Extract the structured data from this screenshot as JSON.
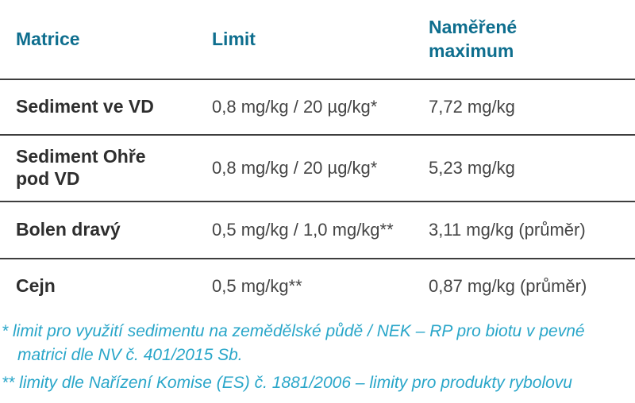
{
  "table": {
    "columns": [
      {
        "label": "Matrice"
      },
      {
        "label": "Limit"
      },
      {
        "label": "Naměřené maximum"
      }
    ],
    "rows": [
      {
        "matrice": "Sediment ve VD",
        "limit": "0,8 mg/kg / 20 µg/kg*",
        "maximum": "7,72 mg/kg"
      },
      {
        "matrice": "Sediment Ohře pod VD",
        "limit": "0,8 mg/kg / 20 µg/kg*",
        "maximum": "5,23 mg/kg"
      },
      {
        "matrice": "Bolen dravý",
        "limit": "0,5 mg/kg / 1,0 mg/kg**",
        "maximum": "3,11 mg/kg (průměr)"
      },
      {
        "matrice": "Cejn",
        "limit": "0,5 mg/kg**",
        "maximum": "0,87 mg/kg (průměr)"
      }
    ]
  },
  "footnotes": [
    "* limit pro využití sedimentu na zemědělské půdě / NEK – RP pro biotu v pevné matrici dle NV č. 401/2015 Sb.",
    "** limity dle Nařízení Komise (ES) č. 1881/2006 – limity pro produkty rybolovu"
  ],
  "colors": {
    "header_teal": "#0e6e8e",
    "body_text": "#454545",
    "matrice_text": "#2e2e2e",
    "divider": "#3e3e3e",
    "footnote_cyan": "#29a6c9"
  }
}
